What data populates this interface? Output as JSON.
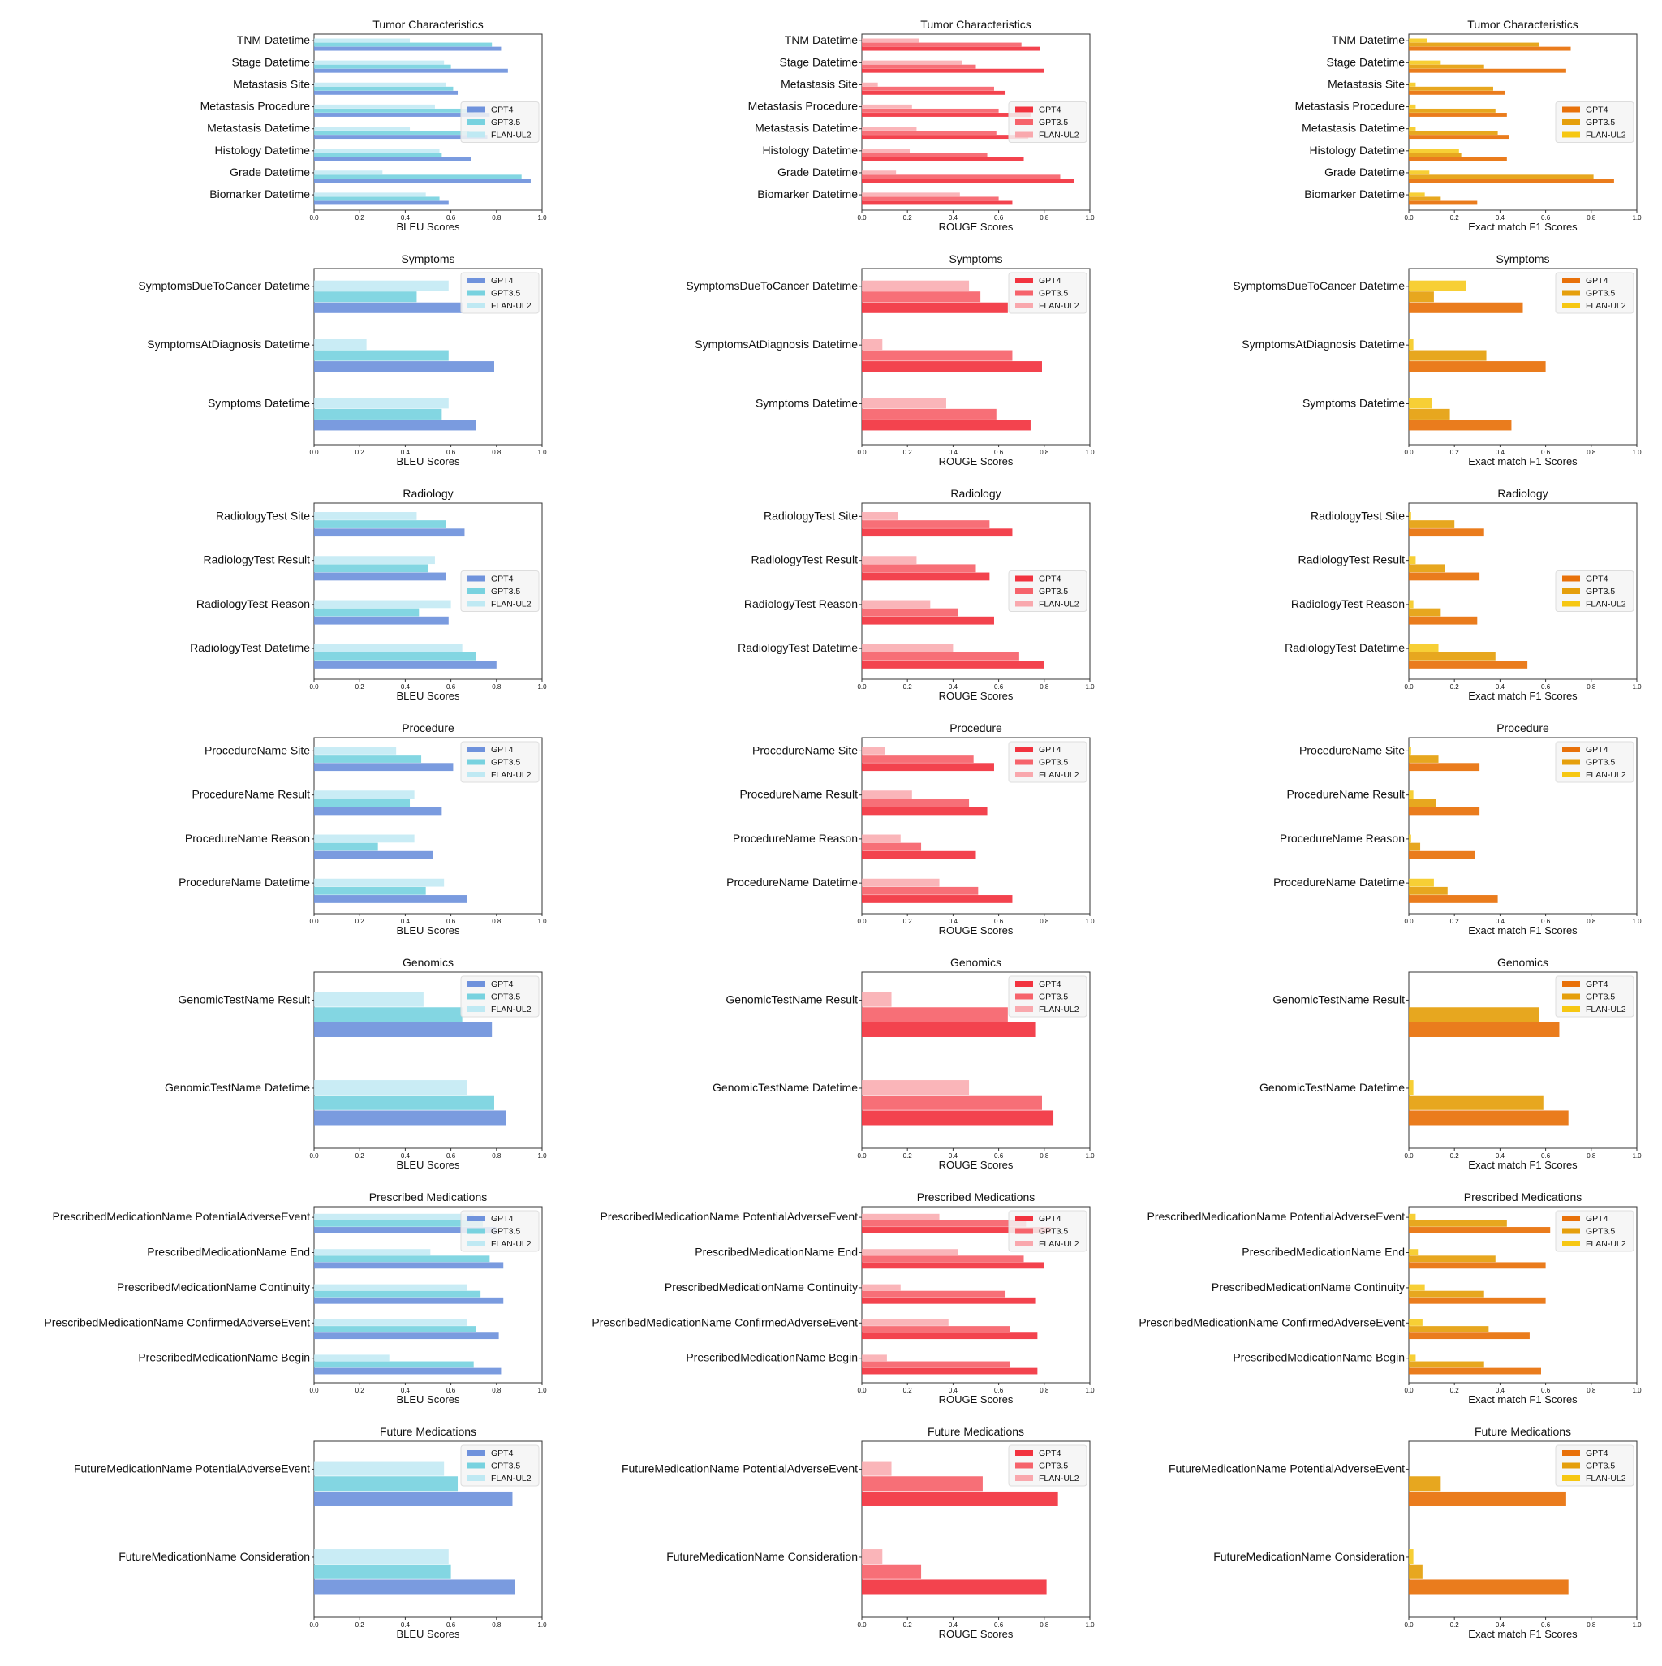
{
  "figure": {
    "colors": {
      "BLEU": [
        "#6f92dc",
        "#78d2df",
        "#bfe9f3"
      ],
      "ROUGE": [
        "#f2333f",
        "#f6636b",
        "#f9a8ad"
      ],
      "F1": [
        "#e8710a",
        "#e59f0c",
        "#f6c712"
      ]
    },
    "ticks": [
      "0.0",
      "0.2",
      "0.4",
      "0.6",
      "0.8",
      "1.0"
    ],
    "xlabels": {
      "BLEU": "BLEU Scores",
      "ROUGE": "ROUGE Scores",
      "F1": "Exact match F1 Scores"
    },
    "metrics": [
      "BLEU",
      "ROUGE",
      "F1"
    ]
  },
  "chart_data": [
    {
      "type": "bar",
      "orientation": "horizontal",
      "title": "Tumor Characteristics",
      "categories": [
        "TNM Datetime",
        "Stage Datetime",
        "Metastasis Site",
        "Metastasis Procedure",
        "Metastasis Datetime",
        "Histology Datetime",
        "Grade Datetime",
        "Biomarker Datetime"
      ],
      "legend": "center-right",
      "xlim": [
        0,
        1
      ],
      "series": [
        "GPT4",
        "GPT3.5",
        "FLAN-UL2"
      ],
      "values": {
        "BLEU": [
          [
            0.82,
            0.85,
            0.63,
            0.77,
            0.76,
            0.69,
            0.95,
            0.59
          ],
          [
            0.78,
            0.6,
            0.61,
            0.7,
            0.68,
            0.56,
            0.91,
            0.55
          ],
          [
            0.42,
            0.57,
            0.58,
            0.53,
            0.42,
            0.55,
            0.3,
            0.49
          ]
        ],
        "ROUGE": [
          [
            0.78,
            0.8,
            0.63,
            0.74,
            0.73,
            0.71,
            0.93,
            0.66
          ],
          [
            0.7,
            0.5,
            0.58,
            0.6,
            0.59,
            0.55,
            0.87,
            0.6
          ],
          [
            0.25,
            0.44,
            0.07,
            0.22,
            0.24,
            0.21,
            0.15,
            0.43
          ]
        ],
        "F1": [
          [
            0.71,
            0.69,
            0.42,
            0.43,
            0.44,
            0.43,
            0.9,
            0.3
          ],
          [
            0.57,
            0.33,
            0.37,
            0.38,
            0.39,
            0.23,
            0.81,
            0.14
          ],
          [
            0.08,
            0.14,
            0.03,
            0.03,
            0.03,
            0.22,
            0.09,
            0.07
          ]
        ]
      }
    },
    {
      "type": "bar",
      "orientation": "horizontal",
      "title": "Symptoms",
      "categories": [
        "SymptomsDueToCancer Datetime",
        "SymptomsAtDiagnosis Datetime",
        "Symptoms Datetime"
      ],
      "legend": "top-right",
      "xlim": [
        0,
        1
      ],
      "series": [
        "GPT4",
        "GPT3.5",
        "FLAN-UL2"
      ],
      "values": {
        "BLEU": [
          [
            0.65,
            0.79,
            0.71
          ],
          [
            0.45,
            0.59,
            0.56
          ],
          [
            0.59,
            0.23,
            0.59
          ]
        ],
        "ROUGE": [
          [
            0.64,
            0.79,
            0.74
          ],
          [
            0.52,
            0.66,
            0.59
          ],
          [
            0.47,
            0.09,
            0.37
          ]
        ],
        "F1": [
          [
            0.5,
            0.6,
            0.45
          ],
          [
            0.11,
            0.34,
            0.18
          ],
          [
            0.25,
            0.02,
            0.1
          ]
        ]
      }
    },
    {
      "type": "bar",
      "orientation": "horizontal",
      "title": "Radiology",
      "categories": [
        "RadiologyTest Site",
        "RadiologyTest Result",
        "RadiologyTest Reason",
        "RadiologyTest Datetime"
      ],
      "legend": "center-right",
      "xlim": [
        0,
        1
      ],
      "series": [
        "GPT4",
        "GPT3.5",
        "FLAN-UL2"
      ],
      "values": {
        "BLEU": [
          [
            0.66,
            0.58,
            0.59,
            0.8
          ],
          [
            0.58,
            0.5,
            0.46,
            0.71
          ],
          [
            0.45,
            0.53,
            0.6,
            0.65
          ]
        ],
        "ROUGE": [
          [
            0.66,
            0.56,
            0.58,
            0.8
          ],
          [
            0.56,
            0.5,
            0.42,
            0.69
          ],
          [
            0.16,
            0.24,
            0.3,
            0.4
          ]
        ],
        "F1": [
          [
            0.33,
            0.31,
            0.3,
            0.52
          ],
          [
            0.2,
            0.16,
            0.14,
            0.38
          ],
          [
            0.01,
            0.03,
            0.02,
            0.13
          ]
        ]
      }
    },
    {
      "type": "bar",
      "orientation": "horizontal",
      "title": "Procedure",
      "categories": [
        "ProcedureName Site",
        "ProcedureName Result",
        "ProcedureName Reason",
        "ProcedureName Datetime"
      ],
      "legend": "top-right",
      "xlim": [
        0,
        1
      ],
      "series": [
        "GPT4",
        "GPT3.5",
        "FLAN-UL2"
      ],
      "values": {
        "BLEU": [
          [
            0.61,
            0.56,
            0.52,
            0.67
          ],
          [
            0.47,
            0.42,
            0.28,
            0.49
          ],
          [
            0.36,
            0.44,
            0.44,
            0.57
          ]
        ],
        "ROUGE": [
          [
            0.58,
            0.55,
            0.5,
            0.66
          ],
          [
            0.49,
            0.47,
            0.26,
            0.51
          ],
          [
            0.1,
            0.22,
            0.17,
            0.34
          ]
        ],
        "F1": [
          [
            0.31,
            0.31,
            0.29,
            0.39
          ],
          [
            0.13,
            0.12,
            0.05,
            0.17
          ],
          [
            0.01,
            0.02,
            0.01,
            0.11
          ]
        ]
      }
    },
    {
      "type": "bar",
      "orientation": "horizontal",
      "title": "Genomics",
      "categories": [
        "GenomicTestName Result",
        "GenomicTestName Datetime"
      ],
      "legend": "top-right",
      "xlim": [
        0,
        1
      ],
      "series": [
        "GPT4",
        "GPT3.5",
        "FLAN-UL2"
      ],
      "values": {
        "BLEU": [
          [
            0.78,
            0.84
          ],
          [
            0.65,
            0.79
          ],
          [
            0.48,
            0.67
          ]
        ],
        "ROUGE": [
          [
            0.76,
            0.84
          ],
          [
            0.64,
            0.79
          ],
          [
            0.13,
            0.47
          ]
        ],
        "F1": [
          [
            0.66,
            0.7
          ],
          [
            0.57,
            0.59
          ],
          [
            0.0,
            0.02
          ]
        ]
      }
    },
    {
      "type": "bar",
      "orientation": "horizontal",
      "title": "Prescribed Medications",
      "categories": [
        "PrescribedMedicationName PotentialAdverseEvent",
        "PrescribedMedicationName End",
        "PrescribedMedicationName Continuity",
        "PrescribedMedicationName ConfirmedAdverseEvent",
        "PrescribedMedicationName Begin"
      ],
      "legend": "top-right",
      "xlim": [
        0,
        1
      ],
      "series": [
        "GPT4",
        "GPT3.5",
        "FLAN-UL2"
      ],
      "values": {
        "BLEU": [
          [
            0.8,
            0.83,
            0.83,
            0.81,
            0.82
          ],
          [
            0.74,
            0.77,
            0.73,
            0.71,
            0.7
          ],
          [
            0.7,
            0.51,
            0.67,
            0.67,
            0.33
          ]
        ],
        "ROUGE": [
          [
            0.83,
            0.8,
            0.76,
            0.77,
            0.77
          ],
          [
            0.72,
            0.71,
            0.63,
            0.65,
            0.65
          ],
          [
            0.34,
            0.42,
            0.17,
            0.38,
            0.11
          ]
        ],
        "F1": [
          [
            0.62,
            0.6,
            0.6,
            0.53,
            0.58
          ],
          [
            0.43,
            0.38,
            0.33,
            0.35,
            0.33
          ],
          [
            0.03,
            0.04,
            0.07,
            0.06,
            0.03
          ]
        ]
      }
    },
    {
      "type": "bar",
      "orientation": "horizontal",
      "title": "Future Medications",
      "categories": [
        "FutureMedicationName PotentialAdverseEvent",
        "FutureMedicationName Consideration"
      ],
      "legend": "top-right",
      "xlim": [
        0,
        1
      ],
      "series": [
        "GPT4",
        "GPT3.5",
        "FLAN-UL2"
      ],
      "values": {
        "BLEU": [
          [
            0.87,
            0.88
          ],
          [
            0.63,
            0.6
          ],
          [
            0.57,
            0.59
          ]
        ],
        "ROUGE": [
          [
            0.86,
            0.81
          ],
          [
            0.53,
            0.26
          ],
          [
            0.13,
            0.09
          ]
        ],
        "F1": [
          [
            0.69,
            0.7
          ],
          [
            0.14,
            0.06
          ],
          [
            0.0,
            0.02
          ]
        ]
      }
    }
  ]
}
